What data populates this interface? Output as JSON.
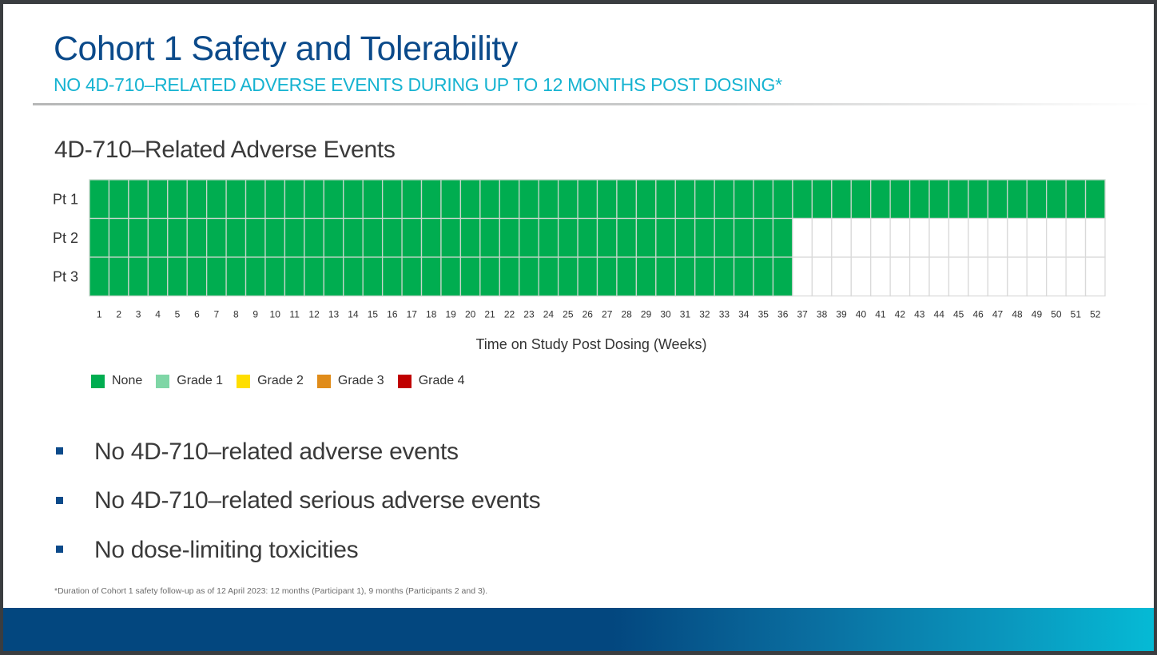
{
  "slide": {
    "title": "Cohort 1 Safety and Tolerability",
    "subtitle": "NO 4D-710–RELATED ADVERSE EVENTS DURING UP TO 12 MONTHS POST DOSING*",
    "bullets": [
      "No 4D-710–related adverse events",
      "No 4D-710–related serious adverse events",
      "No dose-limiting toxicities"
    ],
    "footnote": "*Duration of Cohort 1 safety follow-up as of 12 April 2023: 12 months (Participant 1), 9 months (Participants 2 and 3).",
    "colors": {
      "title": "#0b4a8a",
      "subtitle": "#16b3d1",
      "bullet_marker": "#0b4a8a",
      "grid_line": "#d9d9d9",
      "empty_cell": "#ffffff"
    }
  },
  "chart_data": {
    "type": "heatmap",
    "title": "4D-710–Related Adverse Events",
    "xlabel": "Time on Study Post Dosing (Weeks)",
    "ylabel": "",
    "rows": [
      "Pt 1",
      "Pt 2",
      "Pt 3"
    ],
    "x": [
      1,
      2,
      3,
      4,
      5,
      6,
      7,
      8,
      9,
      10,
      11,
      12,
      13,
      14,
      15,
      16,
      17,
      18,
      19,
      20,
      21,
      22,
      23,
      24,
      25,
      26,
      27,
      28,
      29,
      30,
      31,
      32,
      33,
      34,
      35,
      36,
      37,
      38,
      39,
      40,
      41,
      42,
      43,
      44,
      45,
      46,
      47,
      48,
      49,
      50,
      51,
      52
    ],
    "xlim": [
      1,
      52
    ],
    "categories_legend": [
      {
        "name": "None",
        "color": "#00ad50"
      },
      {
        "name": "Grade 1",
        "color": "#7fd6a6"
      },
      {
        "name": "Grade 2",
        "color": "#ffde00"
      },
      {
        "name": "Grade 3",
        "color": "#e08c1a"
      },
      {
        "name": "Grade 4",
        "color": "#c00000"
      }
    ],
    "series": [
      {
        "name": "Pt 1",
        "weeks_followed": 52,
        "grade_by_week": "None for weeks 1-52"
      },
      {
        "name": "Pt 2",
        "weeks_followed": 36,
        "grade_by_week": "None for weeks 1-36; no data weeks 37-52"
      },
      {
        "name": "Pt 3",
        "weeks_followed": 36,
        "grade_by_week": "None for weeks 1-36; no data weeks 37-52"
      }
    ],
    "legend_position": "bottom-left",
    "grid": true
  }
}
